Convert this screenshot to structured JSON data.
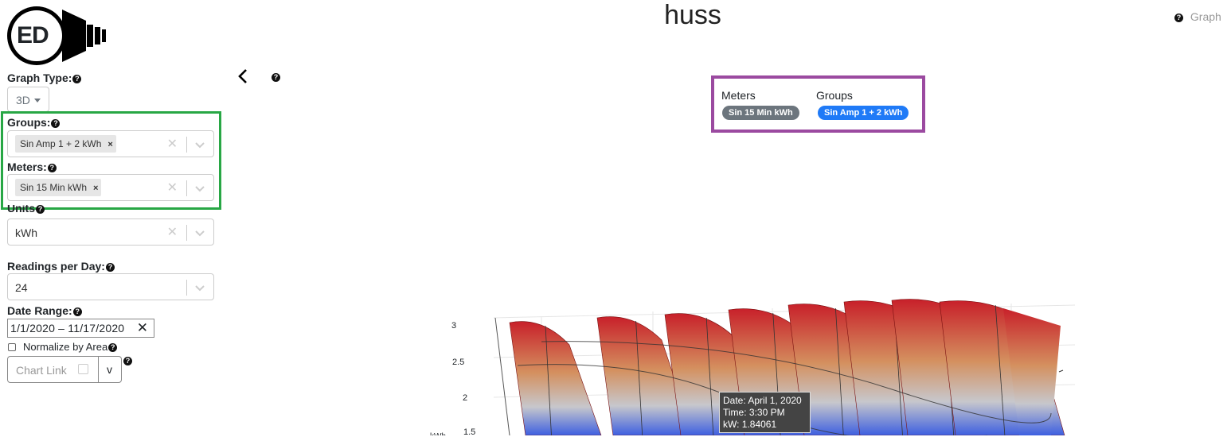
{
  "header": {
    "title": "huss",
    "graph_help_label": "Graph"
  },
  "logo": {
    "text": "ED"
  },
  "sidebar": {
    "graph_type": {
      "label": "Graph Type:",
      "value": "3D"
    },
    "groups": {
      "label": "Groups:",
      "chip": "Sin Amp 1 + 2 kWh"
    },
    "meters": {
      "label": "Meters:",
      "chip": "Sin 15 Min kWh"
    },
    "units": {
      "label": "Units",
      "value": "kWh"
    },
    "readings": {
      "label": "Readings per Day:",
      "value": "24"
    },
    "date_range": {
      "label": "Date Range:",
      "value": "1/1/2020 – 11/17/2020"
    },
    "normalize": {
      "label": "Normalize by Area",
      "checked": false
    },
    "chart_link": {
      "label": "Chart Link",
      "toggle": "v"
    }
  },
  "legend_box": {
    "meters_heading": "Meters",
    "groups_heading": "Groups",
    "meter_pill": "Sin 15 Min kWh",
    "group_pill": "Sin Amp 1 + 2 kWh"
  },
  "plot": {
    "z_ticks": [
      "3",
      "2.5",
      "2",
      "1.5"
    ],
    "z_axis_partial": "kWh"
  },
  "tooltip": {
    "date": "Date: April 1, 2020",
    "time": "Time: 3:30 PM",
    "value": "kW: 1.84061"
  },
  "colors": {
    "groups_highlight": "#28a745",
    "legend_highlight": "#9b4aa0",
    "meter_pill": "#6c757d",
    "group_pill": "#1f7af7",
    "surface_high": "#c8202a",
    "surface_mid": "#d4905f",
    "surface_low": "#3d5fe0"
  }
}
